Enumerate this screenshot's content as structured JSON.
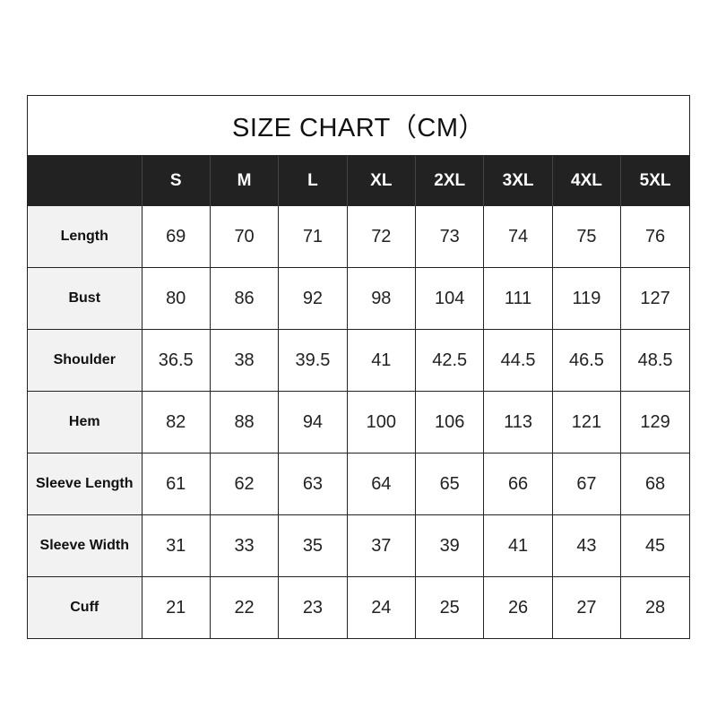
{
  "title": "SIZE CHART（CM）",
  "sizes": [
    "S",
    "M",
    "L",
    "XL",
    "2XL",
    "3XL",
    "4XL",
    "5XL"
  ],
  "rows": [
    {
      "label": "Length",
      "values": [
        "69",
        "70",
        "71",
        "72",
        "73",
        "74",
        "75",
        "76"
      ]
    },
    {
      "label": "Bust",
      "values": [
        "80",
        "86",
        "92",
        "98",
        "104",
        "111",
        "119",
        "127"
      ]
    },
    {
      "label": "Shoulder",
      "values": [
        "36.5",
        "38",
        "39.5",
        "41",
        "42.5",
        "44.5",
        "46.5",
        "48.5"
      ]
    },
    {
      "label": "Hem",
      "values": [
        "82",
        "88",
        "94",
        "100",
        "106",
        "113",
        "121",
        "129"
      ]
    },
    {
      "label": "Sleeve Length",
      "values": [
        "61",
        "62",
        "63",
        "64",
        "65",
        "66",
        "67",
        "68"
      ]
    },
    {
      "label": "Sleeve Width",
      "values": [
        "31",
        "33",
        "35",
        "37",
        "39",
        "41",
        "43",
        "45"
      ]
    },
    {
      "label": "Cuff",
      "values": [
        "21",
        "22",
        "23",
        "24",
        "25",
        "26",
        "27",
        "28"
      ]
    }
  ],
  "colors": {
    "header_bg": "#222222",
    "header_text": "#ffffff",
    "label_bg": "#f2f2f2"
  }
}
